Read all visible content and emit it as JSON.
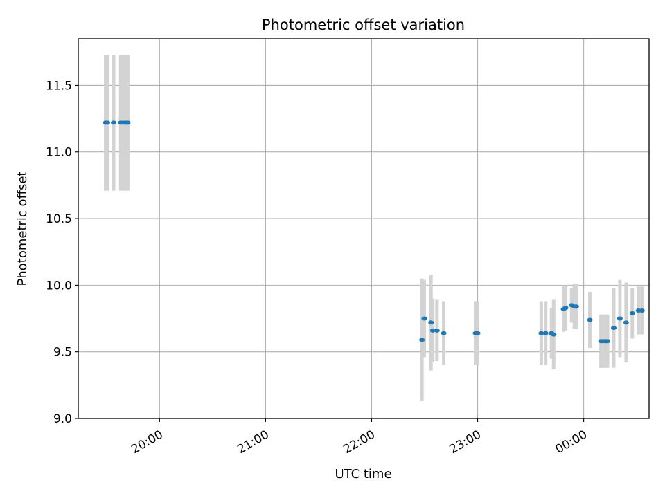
{
  "chart_data": {
    "type": "scatter",
    "title": "Photometric offset variation",
    "xlabel": "UTC time",
    "ylabel": "Photometric offset",
    "x_unit": "UTC time of day, minutes after midnight of the first night (values past 24:00 fall on the next day)",
    "xlim": [
      1154,
      1477
    ],
    "ylim": [
      9.0,
      11.85
    ],
    "x_ticks": [
      {
        "value": 1200,
        "label": "20:00"
      },
      {
        "value": 1260,
        "label": "21:00"
      },
      {
        "value": 1320,
        "label": "22:00"
      },
      {
        "value": 1380,
        "label": "23:00"
      },
      {
        "value": 1440,
        "label": "00:00"
      }
    ],
    "y_ticks": [
      {
        "value": 9.0,
        "label": "9.0"
      },
      {
        "value": 9.5,
        "label": "9.5"
      },
      {
        "value": 10.0,
        "label": "10.0"
      },
      {
        "value": 10.5,
        "label": "10.5"
      },
      {
        "value": 11.0,
        "label": "11.0"
      },
      {
        "value": 11.5,
        "label": "11.5"
      }
    ],
    "grid": true,
    "colors": {
      "points": "#1f77b4",
      "errorbars": "#d3d3d3",
      "grid": "#b0b0b0",
      "axes": "#000000"
    },
    "points": [
      {
        "x": 1169.5,
        "y": 11.22,
        "err": 0.51
      },
      {
        "x": 1170.5,
        "y": 11.22,
        "err": 0.51
      },
      {
        "x": 1174.0,
        "y": 11.22,
        "err": 0.51
      },
      {
        "x": 1178.0,
        "y": 11.22,
        "err": 0.51
      },
      {
        "x": 1179.5,
        "y": 11.22,
        "err": 0.51
      },
      {
        "x": 1181.0,
        "y": 11.22,
        "err": 0.51
      },
      {
        "x": 1182.0,
        "y": 11.22,
        "err": 0.51
      },
      {
        "x": 1348.5,
        "y": 9.59,
        "err": 0.46
      },
      {
        "x": 1349.8,
        "y": 9.75,
        "err": 0.29
      },
      {
        "x": 1353.6,
        "y": 9.72,
        "err": 0.36
      },
      {
        "x": 1354.6,
        "y": 9.66,
        "err": 0.24
      },
      {
        "x": 1357.0,
        "y": 9.66,
        "err": 0.23
      },
      {
        "x": 1360.8,
        "y": 9.64,
        "err": 0.24
      },
      {
        "x": 1378.8,
        "y": 9.64,
        "err": 0.24
      },
      {
        "x": 1380.0,
        "y": 9.64,
        "err": 0.24
      },
      {
        "x": 1416.0,
        "y": 9.64,
        "err": 0.24
      },
      {
        "x": 1418.5,
        "y": 9.64,
        "err": 0.24
      },
      {
        "x": 1421.8,
        "y": 9.64,
        "err": 0.19
      },
      {
        "x": 1423.0,
        "y": 9.63,
        "err": 0.26
      },
      {
        "x": 1428.6,
        "y": 9.82,
        "err": 0.17
      },
      {
        "x": 1429.8,
        "y": 9.83,
        "err": 0.17
      },
      {
        "x": 1433.2,
        "y": 9.85,
        "err": 0.13
      },
      {
        "x": 1434.7,
        "y": 9.84,
        "err": 0.17
      },
      {
        "x": 1435.8,
        "y": 9.84,
        "err": 0.17
      },
      {
        "x": 1443.5,
        "y": 9.74,
        "err": 0.21
      },
      {
        "x": 1449.8,
        "y": 9.58,
        "err": 0.2
      },
      {
        "x": 1451.0,
        "y": 9.58,
        "err": 0.2
      },
      {
        "x": 1452.5,
        "y": 9.58,
        "err": 0.2
      },
      {
        "x": 1453.5,
        "y": 9.58,
        "err": 0.2
      },
      {
        "x": 1457.0,
        "y": 9.68,
        "err": 0.3
      },
      {
        "x": 1460.5,
        "y": 9.75,
        "err": 0.29
      },
      {
        "x": 1464.0,
        "y": 9.72,
        "err": 0.3
      },
      {
        "x": 1467.5,
        "y": 9.79,
        "err": 0.19
      },
      {
        "x": 1471.0,
        "y": 9.81,
        "err": 0.18
      },
      {
        "x": 1473.0,
        "y": 9.81,
        "err": 0.18
      }
    ]
  }
}
